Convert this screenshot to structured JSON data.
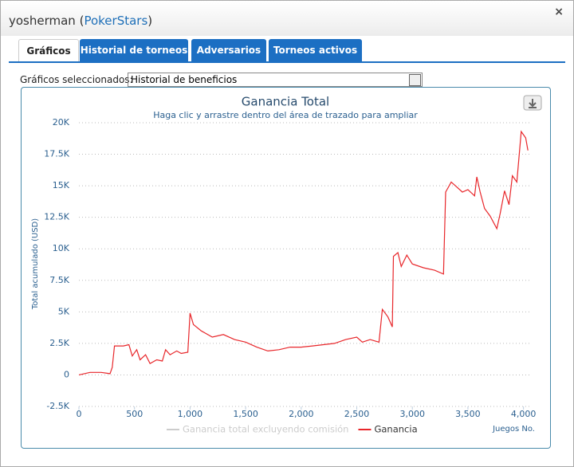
{
  "window": {
    "title_prefix": "yosherman (",
    "site": "PokerStars",
    "title_suffix": ")",
    "close": "×"
  },
  "tabs": [
    "Gráficos",
    "Historial de torneos",
    "Adversarios",
    "Torneos activos"
  ],
  "selector": {
    "label": "Gráficos seleccionados:",
    "value": "Historial de beneficios"
  },
  "chart_data": {
    "type": "line",
    "title": "Ganancia Total",
    "subtitle": "Haga clic y arrastre dentro del área de trazado para ampliar",
    "y_label": "Total acumulado (USD)",
    "x_label": "Juegos No.",
    "xlim": [
      0,
      4060
    ],
    "xticks": [
      0,
      500,
      {
        "value": 1000,
        "label": "1,000"
      },
      {
        "value": 1500,
        "label": "1,500"
      },
      {
        "value": 2000,
        "label": "2,000"
      },
      {
        "value": 2500,
        "label": "2,500"
      },
      {
        "value": 3000,
        "label": "3,000"
      },
      {
        "value": 3500,
        "label": "3,500"
      },
      {
        "value": 4000,
        "label": "4,000"
      }
    ],
    "ylim": [
      -2500,
      20000
    ],
    "yticks": [
      {
        "value": -2500,
        "label": "-2.5K"
      },
      0,
      {
        "value": 2500,
        "label": "2.5K"
      },
      {
        "value": 5000,
        "label": "5K"
      },
      {
        "value": 7500,
        "label": "7.5K"
      },
      {
        "value": 10000,
        "label": "10K"
      },
      {
        "value": 12500,
        "label": "12.5K"
      },
      {
        "value": 15000,
        "label": "15K"
      },
      {
        "value": 17500,
        "label": "17.5K"
      },
      {
        "value": 20000,
        "label": "20K"
      }
    ],
    "grid": true,
    "x": [
      0,
      100,
      200,
      280,
      300,
      320,
      400,
      450,
      480,
      520,
      550,
      600,
      640,
      700,
      750,
      780,
      820,
      880,
      920,
      980,
      1000,
      1030,
      1100,
      1200,
      1300,
      1400,
      1500,
      1600,
      1700,
      1800,
      1900,
      2000,
      2100,
      2200,
      2300,
      2400,
      2500,
      2550,
      2620,
      2700,
      2730,
      2780,
      2820,
      2830,
      2870,
      2900,
      2950,
      3000,
      3100,
      3200,
      3280,
      3300,
      3350,
      3400,
      3450,
      3500,
      3560,
      3580,
      3610,
      3650,
      3700,
      3760,
      3790,
      3830,
      3870,
      3900,
      3940,
      3980,
      4020,
      4040
    ],
    "series": [
      {
        "name": "Ganancia total excluyendo comisión",
        "color": "#cccccc",
        "visible": false
      },
      {
        "name": "Ganancia",
        "color": "#e8262a",
        "visible": true,
        "values": [
          0,
          200,
          200,
          100,
          600,
          2300,
          2300,
          2400,
          1500,
          2000,
          1200,
          1600,
          900,
          1200,
          1100,
          2000,
          1600,
          1900,
          1700,
          1800,
          4900,
          4000,
          3500,
          3000,
          3200,
          2800,
          2600,
          2200,
          1900,
          2000,
          2200,
          2200,
          2300,
          2400,
          2500,
          2800,
          3000,
          2600,
          2800,
          2600,
          5200,
          4600,
          3800,
          9400,
          9700,
          8600,
          9500,
          8800,
          8500,
          8300,
          8000,
          14500,
          15300,
          14900,
          14500,
          14700,
          14200,
          15700,
          14500,
          13200,
          12600,
          11600,
          12800,
          14600,
          13500,
          15800,
          15300,
          19300,
          18800,
          17800
        ]
      }
    ]
  }
}
